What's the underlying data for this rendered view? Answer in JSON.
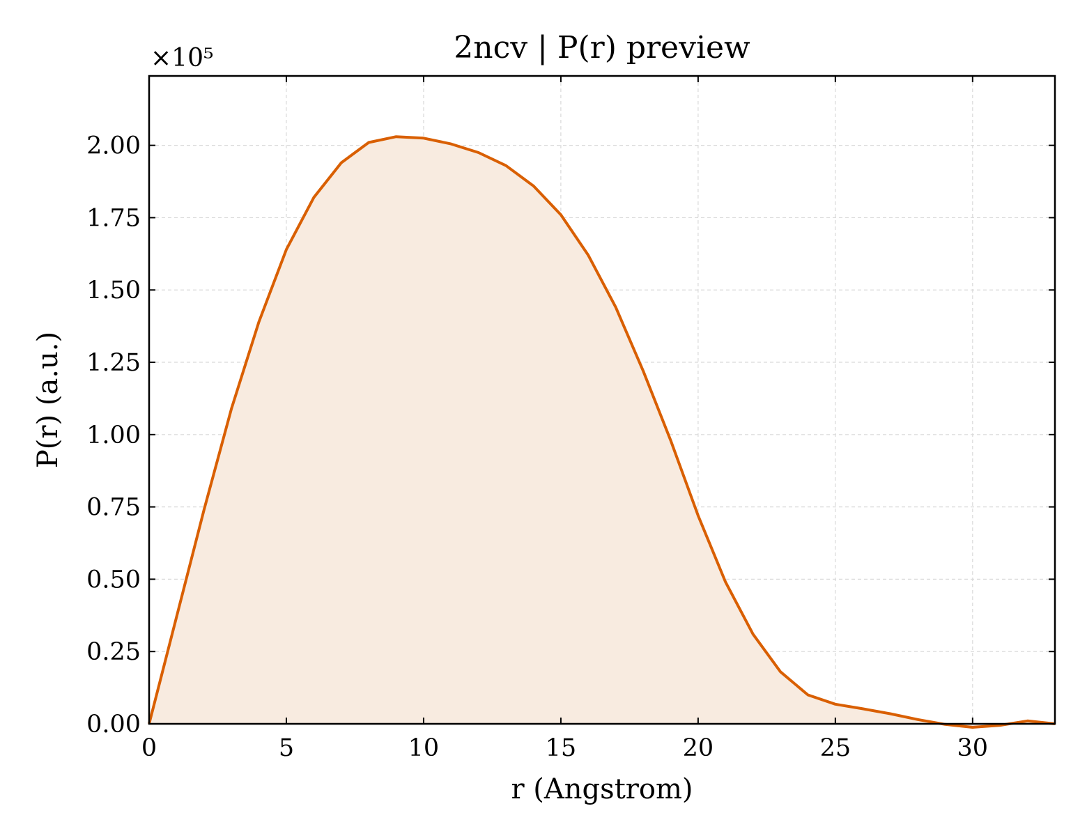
{
  "chart_data": {
    "type": "area",
    "title": "2ncv | P(r) preview",
    "xlabel": "r (Angstrom)",
    "ylabel": "P(r) (a.u.)",
    "y_multiplier": "×10⁵",
    "xlim": [
      0,
      33
    ],
    "ylim": [
      0,
      2.24
    ],
    "x_ticks": [
      0,
      5,
      10,
      15,
      20,
      25,
      30
    ],
    "x_tick_labels": [
      "0",
      "5",
      "10",
      "15",
      "20",
      "25",
      "30"
    ],
    "y_ticks": [
      0,
      0.25,
      0.5,
      0.75,
      1.0,
      1.25,
      1.5,
      1.75,
      2.0
    ],
    "y_tick_labels": [
      "0.00",
      "0.25",
      "0.50",
      "0.75",
      "1.00",
      "1.25",
      "1.50",
      "1.75",
      "2.00"
    ],
    "grid": true,
    "line_color": "#d95f02",
    "fill_color": "#f8ebe0",
    "series": [
      {
        "x": [
          0,
          1,
          2,
          3,
          4,
          5,
          6,
          7,
          8,
          9,
          10,
          11,
          12,
          13,
          14,
          15,
          16,
          17,
          18,
          19,
          20,
          21,
          22,
          23,
          24,
          25,
          26,
          27,
          28,
          29,
          30,
          31,
          32,
          33
        ],
        "y": [
          0.0,
          0.37,
          0.74,
          1.09,
          1.39,
          1.64,
          1.82,
          1.94,
          2.01,
          2.03,
          2.025,
          2.005,
          1.975,
          1.93,
          1.86,
          1.76,
          1.62,
          1.44,
          1.22,
          0.98,
          0.72,
          0.49,
          0.31,
          0.18,
          0.1,
          0.068,
          0.052,
          0.035,
          0.015,
          -0.002,
          -0.012,
          -0.005,
          0.01,
          0.0
        ]
      }
    ]
  }
}
